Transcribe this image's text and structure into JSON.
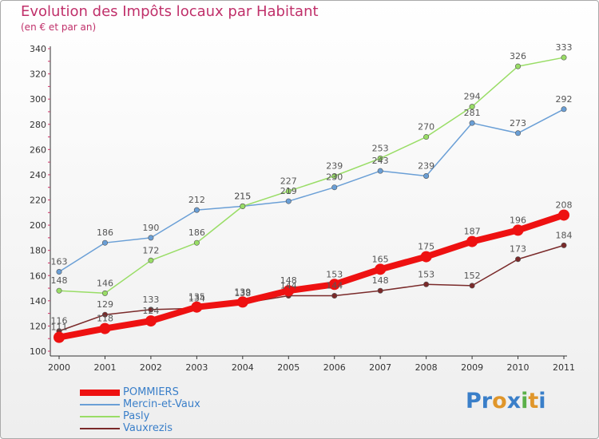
{
  "chart": {
    "title": "Evolution des Impôts locaux par Habitant",
    "subtitle": "(en € et par an)"
  },
  "chart_data": {
    "type": "line",
    "x": [
      "2000",
      "2001",
      "2002",
      "2003",
      "2004",
      "2005",
      "2006",
      "2007",
      "2008",
      "2009",
      "2010",
      "2011"
    ],
    "ylim": [
      100,
      340
    ],
    "yticks": [
      100,
      120,
      140,
      160,
      180,
      200,
      220,
      240,
      260,
      280,
      300,
      320,
      340
    ],
    "grid": false,
    "legend_position": "bottom-left",
    "series": [
      {
        "name": "Vauxrezis",
        "color": "#7a2a2a",
        "values": [
          116,
          129,
          133,
          134,
          138,
          144,
          144,
          148,
          153,
          152,
          173,
          184
        ]
      },
      {
        "name": "Mercin-et-Vaux",
        "color": "#6a9fd6",
        "values": [
          163,
          186,
          190,
          212,
          215,
          219,
          230,
          243,
          239,
          281,
          273,
          292
        ]
      },
      {
        "name": "Pasly",
        "color": "#99dd66",
        "values": [
          148,
          146,
          172,
          186,
          215,
          227,
          239,
          253,
          270,
          294,
          326,
          333
        ]
      },
      {
        "name": "POMMIERS",
        "color": "#ee1111",
        "values": [
          111,
          118,
          124,
          135,
          139,
          148,
          153,
          165,
          175,
          187,
          196,
          208
        ]
      }
    ]
  },
  "legend": [
    {
      "label": "POMMIERS",
      "color": "#ee1111"
    },
    {
      "label": "Mercin-et-Vaux",
      "color": "#6a9fd6"
    },
    {
      "label": "Pasly",
      "color": "#99dd66"
    },
    {
      "label": "Vauxrezis",
      "color": "#7a2a2a"
    }
  ],
  "logo": {
    "text": "Proxiti",
    "colors": [
      "#3a7fc9",
      "#3a7fc9",
      "#e0962a",
      "#3a7fc9",
      "#5bb04a",
      "#e0962a",
      "#3a7fc9"
    ]
  }
}
